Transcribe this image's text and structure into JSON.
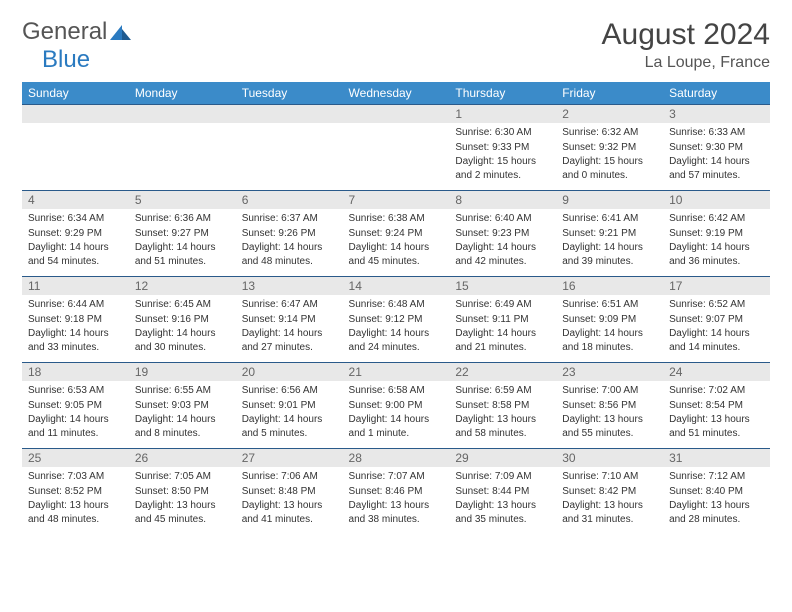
{
  "brand": {
    "part1": "General",
    "part2": "Blue"
  },
  "title": "August 2024",
  "location": "La Loupe, France",
  "colors": {
    "header_bg": "#3b8bc9",
    "header_text": "#ffffff",
    "daynum_bg": "#e8e8e8",
    "row_border": "#2a5a8a",
    "brand_blue": "#2a7ac0"
  },
  "weekdays": [
    "Sunday",
    "Monday",
    "Tuesday",
    "Wednesday",
    "Thursday",
    "Friday",
    "Saturday"
  ],
  "layout": {
    "first_weekday_index": 4,
    "days_in_month": 31
  },
  "days": {
    "1": {
      "sunrise": "6:30 AM",
      "sunset": "9:33 PM",
      "daylight": "15 hours and 2 minutes."
    },
    "2": {
      "sunrise": "6:32 AM",
      "sunset": "9:32 PM",
      "daylight": "15 hours and 0 minutes."
    },
    "3": {
      "sunrise": "6:33 AM",
      "sunset": "9:30 PM",
      "daylight": "14 hours and 57 minutes."
    },
    "4": {
      "sunrise": "6:34 AM",
      "sunset": "9:29 PM",
      "daylight": "14 hours and 54 minutes."
    },
    "5": {
      "sunrise": "6:36 AM",
      "sunset": "9:27 PM",
      "daylight": "14 hours and 51 minutes."
    },
    "6": {
      "sunrise": "6:37 AM",
      "sunset": "9:26 PM",
      "daylight": "14 hours and 48 minutes."
    },
    "7": {
      "sunrise": "6:38 AM",
      "sunset": "9:24 PM",
      "daylight": "14 hours and 45 minutes."
    },
    "8": {
      "sunrise": "6:40 AM",
      "sunset": "9:23 PM",
      "daylight": "14 hours and 42 minutes."
    },
    "9": {
      "sunrise": "6:41 AM",
      "sunset": "9:21 PM",
      "daylight": "14 hours and 39 minutes."
    },
    "10": {
      "sunrise": "6:42 AM",
      "sunset": "9:19 PM",
      "daylight": "14 hours and 36 minutes."
    },
    "11": {
      "sunrise": "6:44 AM",
      "sunset": "9:18 PM",
      "daylight": "14 hours and 33 minutes."
    },
    "12": {
      "sunrise": "6:45 AM",
      "sunset": "9:16 PM",
      "daylight": "14 hours and 30 minutes."
    },
    "13": {
      "sunrise": "6:47 AM",
      "sunset": "9:14 PM",
      "daylight": "14 hours and 27 minutes."
    },
    "14": {
      "sunrise": "6:48 AM",
      "sunset": "9:12 PM",
      "daylight": "14 hours and 24 minutes."
    },
    "15": {
      "sunrise": "6:49 AM",
      "sunset": "9:11 PM",
      "daylight": "14 hours and 21 minutes."
    },
    "16": {
      "sunrise": "6:51 AM",
      "sunset": "9:09 PM",
      "daylight": "14 hours and 18 minutes."
    },
    "17": {
      "sunrise": "6:52 AM",
      "sunset": "9:07 PM",
      "daylight": "14 hours and 14 minutes."
    },
    "18": {
      "sunrise": "6:53 AM",
      "sunset": "9:05 PM",
      "daylight": "14 hours and 11 minutes."
    },
    "19": {
      "sunrise": "6:55 AM",
      "sunset": "9:03 PM",
      "daylight": "14 hours and 8 minutes."
    },
    "20": {
      "sunrise": "6:56 AM",
      "sunset": "9:01 PM",
      "daylight": "14 hours and 5 minutes."
    },
    "21": {
      "sunrise": "6:58 AM",
      "sunset": "9:00 PM",
      "daylight": "14 hours and 1 minute."
    },
    "22": {
      "sunrise": "6:59 AM",
      "sunset": "8:58 PM",
      "daylight": "13 hours and 58 minutes."
    },
    "23": {
      "sunrise": "7:00 AM",
      "sunset": "8:56 PM",
      "daylight": "13 hours and 55 minutes."
    },
    "24": {
      "sunrise": "7:02 AM",
      "sunset": "8:54 PM",
      "daylight": "13 hours and 51 minutes."
    },
    "25": {
      "sunrise": "7:03 AM",
      "sunset": "8:52 PM",
      "daylight": "13 hours and 48 minutes."
    },
    "26": {
      "sunrise": "7:05 AM",
      "sunset": "8:50 PM",
      "daylight": "13 hours and 45 minutes."
    },
    "27": {
      "sunrise": "7:06 AM",
      "sunset": "8:48 PM",
      "daylight": "13 hours and 41 minutes."
    },
    "28": {
      "sunrise": "7:07 AM",
      "sunset": "8:46 PM",
      "daylight": "13 hours and 38 minutes."
    },
    "29": {
      "sunrise": "7:09 AM",
      "sunset": "8:44 PM",
      "daylight": "13 hours and 35 minutes."
    },
    "30": {
      "sunrise": "7:10 AM",
      "sunset": "8:42 PM",
      "daylight": "13 hours and 31 minutes."
    },
    "31": {
      "sunrise": "7:12 AM",
      "sunset": "8:40 PM",
      "daylight": "13 hours and 28 minutes."
    }
  },
  "labels": {
    "sunrise": "Sunrise:",
    "sunset": "Sunset:",
    "daylight": "Daylight:"
  }
}
